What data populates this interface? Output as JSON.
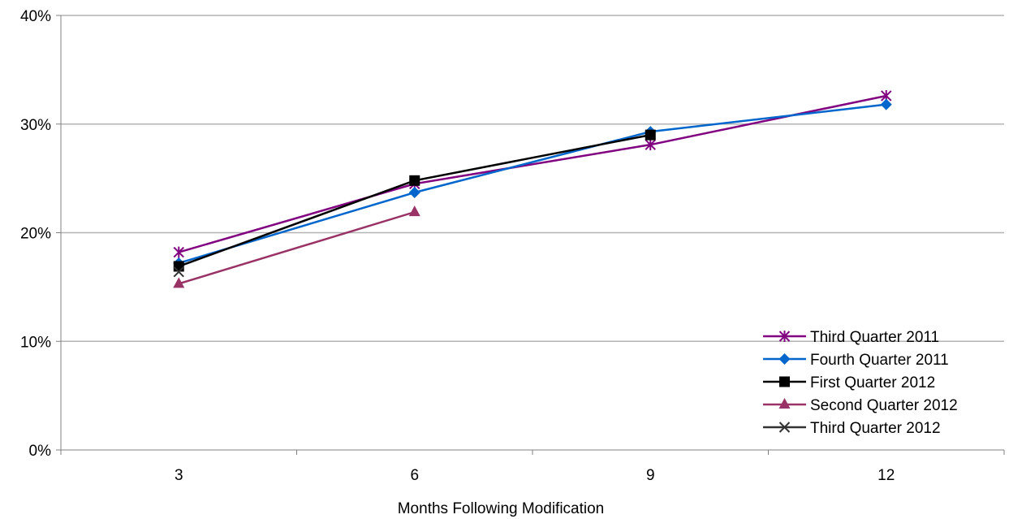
{
  "chart_data": {
    "type": "line",
    "title": "",
    "xlabel": "Months Following Modification",
    "ylabel": "",
    "categories": [
      "3",
      "6",
      "9",
      "12"
    ],
    "y_ticks": [
      "0%",
      "10%",
      "20%",
      "30%",
      "40%"
    ],
    "ylim": [
      0,
      40
    ],
    "grid": true,
    "legend_position": "bottom-right",
    "series": [
      {
        "name": "Third Quarter 2011",
        "values": [
          18.2,
          24.5,
          28.1,
          32.6
        ],
        "color": "#800080",
        "marker": "star"
      },
      {
        "name": "Fourth Quarter 2011",
        "values": [
          17.2,
          23.7,
          29.3,
          31.8
        ],
        "color": "#0066CC",
        "marker": "diamond"
      },
      {
        "name": "First Quarter 2012",
        "values": [
          16.9,
          24.8,
          29.0,
          null
        ],
        "color": "#000000",
        "marker": "square"
      },
      {
        "name": "Second Quarter 2012",
        "values": [
          15.3,
          21.9,
          null,
          null
        ],
        "color": "#993366",
        "marker": "triangle"
      },
      {
        "name": "Third Quarter 2012",
        "values": [
          16.4,
          null,
          null,
          null
        ],
        "color": "#333333",
        "marker": "x"
      }
    ]
  }
}
